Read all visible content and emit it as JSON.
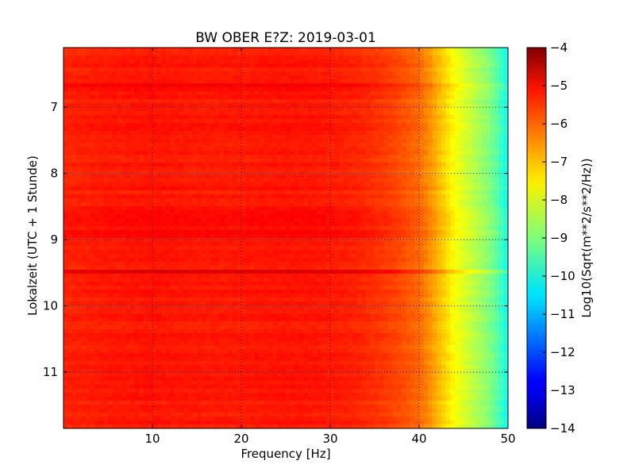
{
  "chart_data": {
    "type": "heatmap",
    "title": "BW OBER E?Z: 2019-03-01",
    "xlabel": "Frequency [Hz]",
    "ylabel": "Lokalzeit (UTC + 1 Stunde)",
    "xlim": [
      0.0,
      50.0
    ],
    "ylim": [
      11.85,
      6.1
    ],
    "y_inverted": true,
    "x_ticks": [
      10,
      20,
      30,
      40,
      50
    ],
    "x_tick_labels": [
      "10",
      "20",
      "30",
      "40",
      "50"
    ],
    "y_ticks": [
      7,
      8,
      9,
      10,
      11
    ],
    "y_tick_labels": [
      "7",
      "8",
      "9",
      "10",
      "11"
    ],
    "grid": true,
    "colormap": "jet",
    "colorbar": {
      "label": "Log10(Sqrt(m**2/s**2/Hz))",
      "range": [
        -14,
        -4
      ],
      "ticks": [
        -4,
        -5,
        -6,
        -7,
        -8,
        -9,
        -10,
        -11,
        -12,
        -13,
        -14
      ],
      "tick_labels": [
        "−4",
        "−5",
        "−6",
        "−7",
        "−8",
        "−9",
        "−10",
        "−11",
        "−12",
        "−13",
        "−14"
      ]
    },
    "frequency_profile": {
      "frequency_hz": [
        0,
        5,
        10,
        15,
        20,
        25,
        30,
        33,
        36,
        38,
        40,
        41,
        42,
        43,
        44,
        45,
        46,
        47,
        48,
        49,
        50
      ],
      "log10_amplitude": [
        -5.6,
        -5.5,
        -5.45,
        -5.5,
        -5.5,
        -5.45,
        -5.5,
        -5.6,
        -5.8,
        -6.0,
        -6.3,
        -6.6,
        -7.0,
        -7.4,
        -7.8,
        -8.1,
        -8.4,
        -8.7,
        -9.0,
        -9.5,
        -10.2
      ]
    }
  }
}
